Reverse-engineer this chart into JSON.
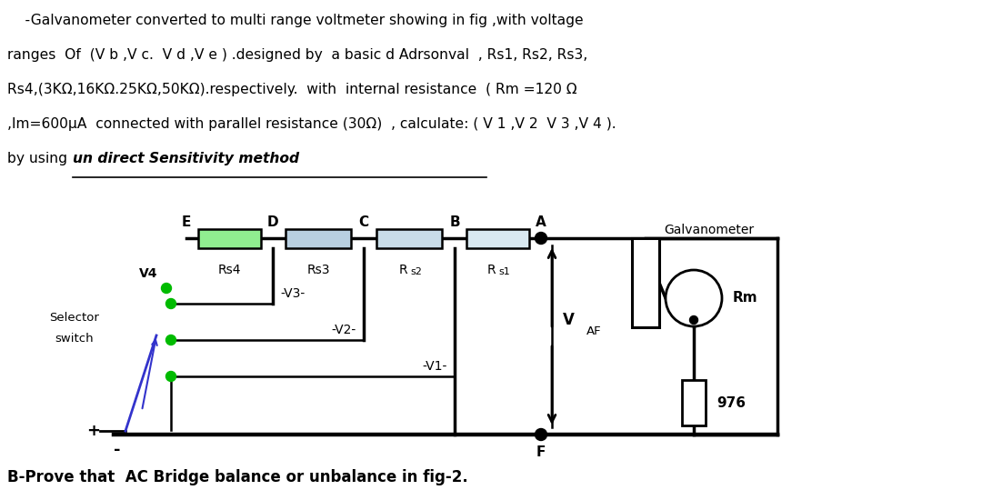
{
  "bg_color": "#ffffff",
  "fig_width": 10.8,
  "fig_height": 5.5,
  "line1": "    -Galvanometer converted to multi range voltmeter showing in fig ,with voltage",
  "line2": "ranges  Of  (V b ,V c.  V d ,V e ) .designed by  a basic d Adrsonval  , Rs1, Rs2, Rs3,",
  "line3": "Rs4,(3KΩ,16KΩ.25KΩ,50KΩ).respectively.  with  internal resistance  ( Rm =120 Ω",
  "line4": ",Im=600μA  connected with parallel resistance (30Ω)  , calculate: ( V 1 ,V 2  V 3 ,V 4 ).",
  "line5a": "by using ",
  "line5b": "un direct Sensitivity method",
  "bottom_text": "B-Prove that  AC Bridge balance or unbalance in fig-2.",
  "node_labels": [
    "E",
    "D",
    "C",
    "B",
    "A"
  ],
  "resistor_labels": [
    "Rs4",
    "Rs3",
    "Rs2",
    "Rs1"
  ],
  "resistor_colors": [
    "#90EE90",
    "#b8cfe0",
    "#c8dce8",
    "#d8e8f0"
  ],
  "vaf_label": "VAF",
  "rm_label": "Rm",
  "res_976": "976",
  "galv_label": "Galvanometer",
  "selector_label": [
    "Selector",
    "switch"
  ],
  "v_labels": [
    "V4",
    "-V3-",
    "-V2-",
    "-V1-"
  ],
  "plus_label": "+",
  "minus_label": "-"
}
